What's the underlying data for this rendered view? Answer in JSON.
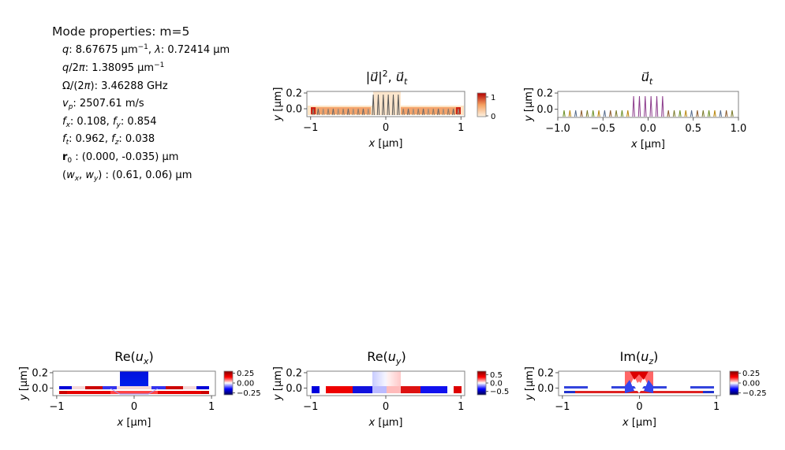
{
  "props": {
    "title": "Mode properties: m=5",
    "lines": [
      "q: 8.67675 µm⁻¹, λ: 0.72414 µm",
      "q/2π: 1.38095 µm⁻¹",
      "Ω/(2π): 3.46288 GHz",
      "vp: 2507.61 m/s",
      "fx: 0.108, fy: 0.854",
      "ft: 0.962, fz: 0.038",
      "r0: (0.000, -0.035) µm",
      "(wx, wy): (0.61, 0.06) µm"
    ]
  },
  "colors": {
    "red": "#cc0000",
    "blue": "#0000cc",
    "white": "#ffffff",
    "orange_light": "#fdebd0",
    "orange": "#ee7733",
    "frame": "#808080"
  },
  "chart_data": [
    {
      "type": "heatmap",
      "title": "|u|², ut",
      "xlabel": "x [µm]",
      "ylabel": "y [µm]",
      "xlim": [
        -1.05,
        1.05
      ],
      "ylim": [
        -0.1,
        0.22
      ],
      "xticks": [
        -1,
        0,
        1
      ],
      "xtick_labels": [
        "−1",
        "0",
        "1"
      ],
      "yticks": [
        0.0,
        0.2
      ],
      "ytick_labels": [
        "0.0",
        "0.2"
      ],
      "colorbar": {
        "ticks": [
          0,
          1
        ],
        "labels": [
          "0",
          "1"
        ],
        "map": "orange"
      }
    },
    {
      "type": "heatmap",
      "title": "ut",
      "xlabel": "x [µm]",
      "ylabel": "y [µm]",
      "xlim": [
        -1.0,
        1.0
      ],
      "ylim": [
        -0.1,
        0.22
      ],
      "xticks": [
        -1.0,
        -0.5,
        0.0,
        0.5,
        1.0
      ],
      "xtick_labels": [
        "−1.0",
        "−0.5",
        "0.0",
        "0.5",
        "1.0"
      ],
      "yticks": [
        0.0,
        0.2
      ],
      "ytick_labels": [
        "0.0",
        "0.2"
      ]
    },
    {
      "type": "heatmap",
      "title": "Re(ux)",
      "xlabel": "x [µm]",
      "ylabel": "y [µm]",
      "xlim": [
        -1.05,
        1.05
      ],
      "ylim": [
        -0.1,
        0.22
      ],
      "xticks": [
        -1,
        0,
        1
      ],
      "xtick_labels": [
        "−1",
        "0",
        "1"
      ],
      "yticks": [
        0.0,
        0.2
      ],
      "ytick_labels": [
        "0.0",
        "0.2"
      ],
      "colorbar": {
        "ticks": [
          0.25,
          0.0,
          -0.25
        ],
        "labels": [
          "0.25",
          "0.00",
          "−0.25"
        ],
        "range": [
          -0.3,
          0.3
        ],
        "map": "seismic"
      }
    },
    {
      "type": "heatmap",
      "title": "Re(uy)",
      "xlabel": "x [µm]",
      "ylabel": "y [µm]",
      "xlim": [
        -1.05,
        1.05
      ],
      "ylim": [
        -0.1,
        0.22
      ],
      "xticks": [
        -1,
        0,
        1
      ],
      "xtick_labels": [
        "−1",
        "0",
        "1"
      ],
      "yticks": [
        0.0,
        0.2
      ],
      "ytick_labels": [
        "0.0",
        "0.2"
      ],
      "colorbar": {
        "ticks": [
          0.5,
          0.0,
          -0.5
        ],
        "labels": [
          "0.5",
          "0.0",
          "−0.5"
        ],
        "range": [
          -0.7,
          0.7
        ],
        "map": "seismic"
      }
    },
    {
      "type": "heatmap",
      "title": "Im(uz)",
      "xlabel": "x [µm]",
      "ylabel": "y [µm]",
      "xlim": [
        -1.05,
        1.05
      ],
      "ylim": [
        -0.1,
        0.22
      ],
      "xticks": [
        -1,
        0,
        1
      ],
      "xtick_labels": [
        "−1",
        "0",
        "1"
      ],
      "yticks": [
        0.0,
        0.2
      ],
      "ytick_labels": [
        "0.0",
        "0.2"
      ],
      "colorbar": {
        "ticks": [
          0.25,
          0.0,
          -0.25
        ],
        "labels": [
          "0.25",
          "0.00",
          "−0.25"
        ],
        "range": [
          -0.3,
          0.3
        ],
        "map": "seismic"
      }
    }
  ]
}
